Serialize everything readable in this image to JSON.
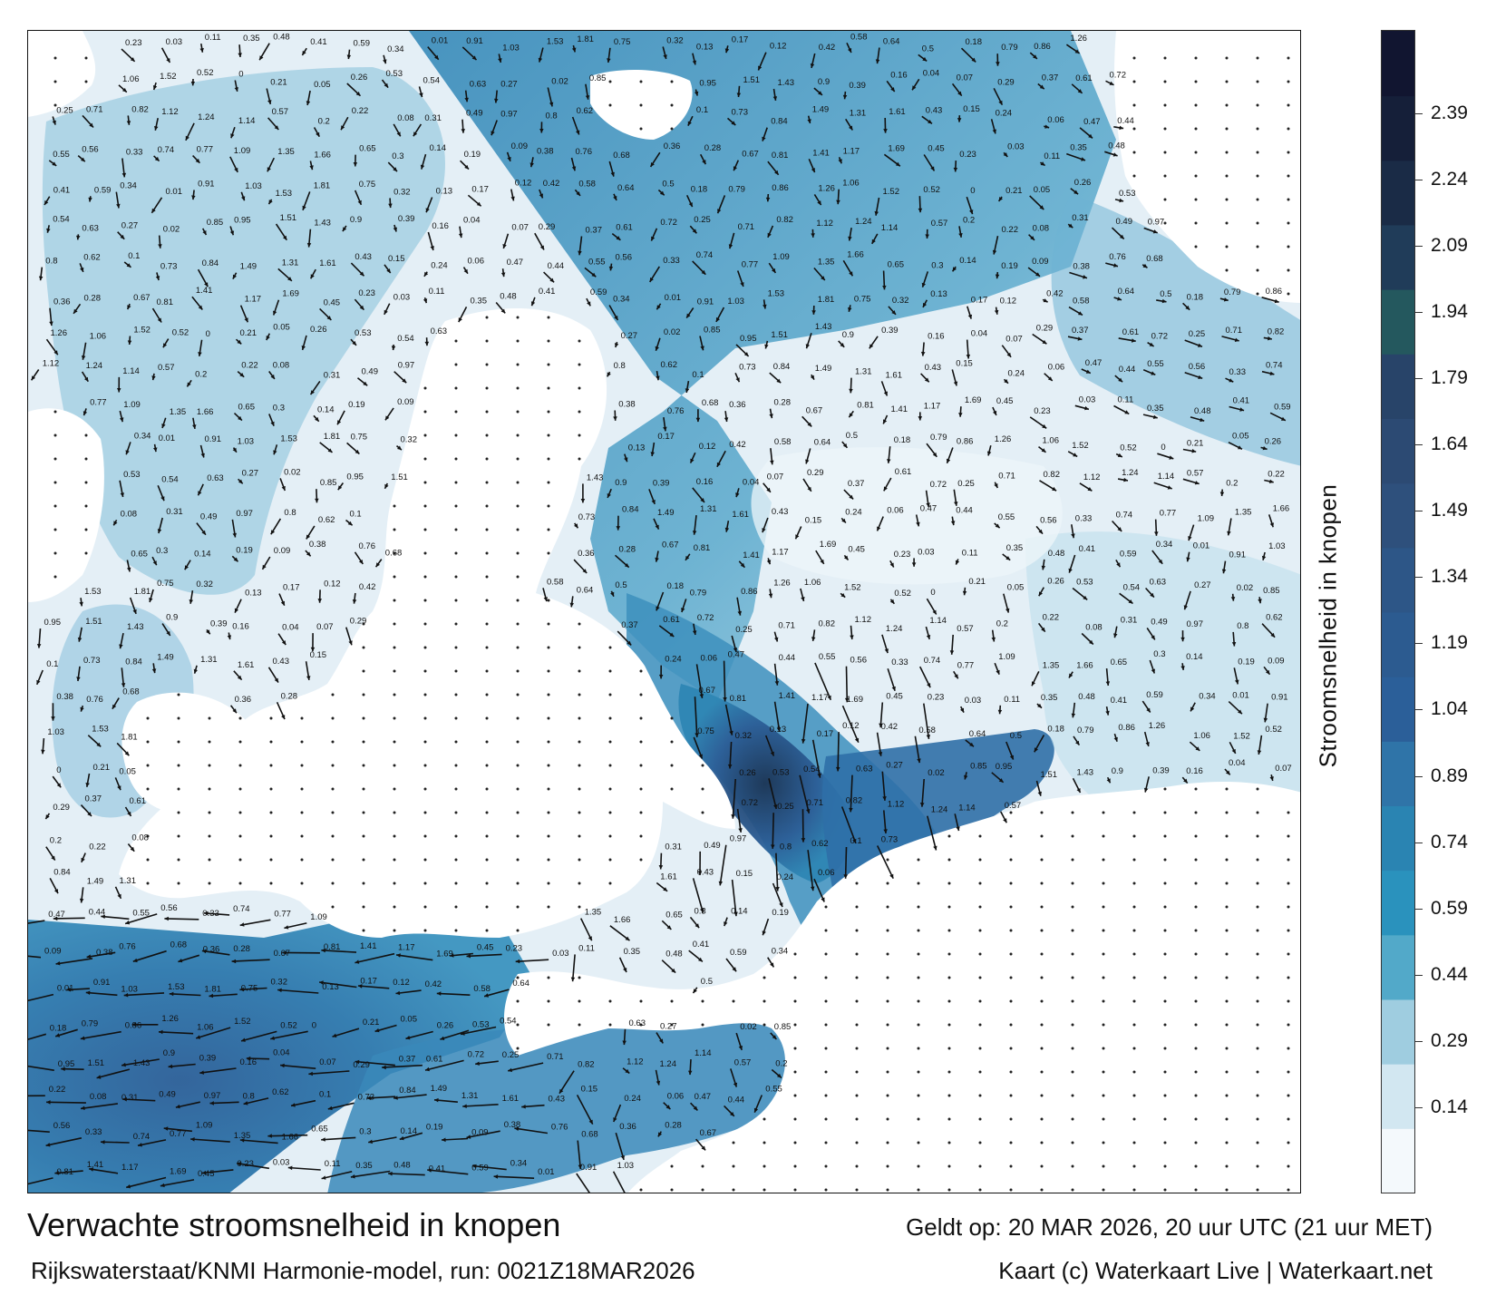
{
  "map": {
    "title": "Verwachte stroomsnelheid in knopen",
    "source": "Rijkswaterstaat/KNMI Harmonie-model, run: 0021Z18MAR2026",
    "valid_time": "Geldt op: 20 MAR 2026, 20 uur UTC (21 uur MET)",
    "credit": "Kaart (c) Waterkaart Live | Waterkaart.net",
    "land_color": "#ffffff",
    "sea_color_low": "#e7f1f8",
    "sea_color_high": "#2a5d9c"
  },
  "legend": {
    "title": "Stroomsnelheid in knopen",
    "ticks": [
      "0.14",
      "0.29",
      "0.44",
      "0.59",
      "0.74",
      "0.89",
      "1.04",
      "1.19",
      "1.34",
      "1.49",
      "1.64",
      "1.79",
      "1.94",
      "2.09",
      "2.24",
      "2.39"
    ],
    "colors": [
      "#f4f9fc",
      "#d2e7f1",
      "#9fcde0",
      "#52a9c9",
      "#2a92bd",
      "#2a84b2",
      "#2f74a8",
      "#2b5f99",
      "#2c5b90",
      "#2d5687",
      "#2e507c",
      "#2c4a73",
      "#284469",
      "#24585e",
      "#203c59",
      "#1a2b46",
      "#151f39",
      "#111530"
    ]
  },
  "labels": [
    "0.23",
    "0.15",
    "0.16",
    "0.13",
    "0.14",
    "0.22",
    "0.21",
    "0.03",
    "0.24",
    "0.04",
    "0.17",
    "0.19",
    "0.08",
    "0.05",
    "0.11",
    "0.06",
    "0.07",
    "0.12",
    "0.09",
    "0.31",
    "0.26",
    "0.35",
    "0.47",
    "0.29",
    "0.42",
    "0.38",
    "0.49",
    "0.53",
    "0.48",
    "0.44",
    "0.37",
    "0.58",
    "0.76",
    "0.97",
    "0.54",
    "0.41",
    "0.55",
    "0.61",
    "0.64",
    "0.68",
    "0.8",
    "0.63",
    "0.59",
    "0.56",
    "0.72",
    "0.5",
    "0.36",
    "0.62",
    "0.27",
    "0.34",
    "0.33",
    "0.25",
    "0.18",
    "0.28",
    "0.1",
    "0.02",
    "0.01",
    "0.74",
    "0.71",
    "0.79",
    "0.67",
    "0.73",
    "0.85",
    "0.91",
    "0.77",
    "0.82",
    "0.86",
    "0.81",
    "0.84",
    "0.95",
    "1.03",
    "1.09",
    "1.12",
    "1.26",
    "1.41",
    "1.49",
    "1.51",
    "1.53",
    "1.35",
    "1.24",
    "1.06",
    "1.17",
    "1.31",
    "1.43",
    "1.81",
    "1.66",
    "1.14",
    "1.52",
    "1.69",
    "1.61",
    "0.9",
    "0.75",
    "0.65",
    "0.57",
    "0.52",
    "0.45",
    "0.43",
    "0.39",
    "0.32",
    "0.3",
    "0.2",
    "0"
  ],
  "colorbar_title": "Stroomsnelheid in knopen"
}
